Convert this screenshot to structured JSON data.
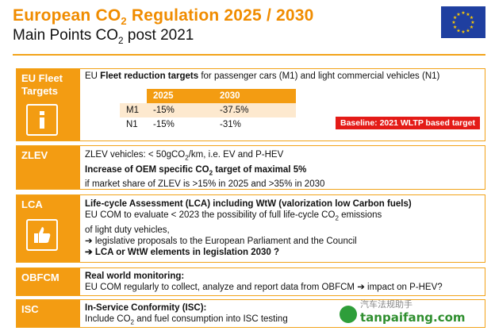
{
  "header": {
    "title_prefix": "European CO",
    "title_sub": "2",
    "title_suffix": " Regulation 2025 / 2030",
    "subtitle_prefix": "Main Points CO",
    "subtitle_sub": "2",
    "subtitle_suffix": " post 2021",
    "flag_icon": "eu-flag-icon",
    "colors": {
      "accent": "#f39c12",
      "title": "#f08c00",
      "flag_blue": "#1f3fa0",
      "flag_star": "#ffcc00",
      "alert": "#e41b17"
    }
  },
  "sections": {
    "fleet": {
      "label_line1": "EU Fleet",
      "label_line2": "Targets",
      "icon": "info-icon",
      "line1_pre": "EU ",
      "line1_bold": "Fleet reduction targets",
      "line1_post": " for passenger cars (M1) and light commercial vehicles (N1)",
      "table": {
        "headers": [
          "",
          "2025",
          "2030"
        ],
        "rows": [
          [
            "M1",
            "-15%",
            "-37.5%"
          ],
          [
            "N1",
            "-15%",
            "-31%"
          ]
        ]
      },
      "baseline": "Baseline: 2021 WLTP based target"
    },
    "zlev": {
      "label": "ZLEV",
      "line1_pre": "ZLEV vehicles: < 50gCO",
      "line1_sub": "2",
      "line1_post": "/km, i.e. EV and P-HEV",
      "line2_pre": "Increase of OEM specific CO",
      "line2_sub": "2",
      "line2_post": "  target of maximal 5%",
      "line3": "if market share of ZLEV is >15% in 2025 and >35% in 2030"
    },
    "lca": {
      "label": "LCA",
      "icon": "thumbs-up-icon",
      "line1": "Life-cycle Assessment (LCA) including WtW (valorization low Carbon fuels)",
      "line2_pre": "EU COM to evaluate  < 2023 the possibility of full life-cycle CO",
      "line2_sub": "2",
      "line2_post": " emissions",
      "line3": "of light duty vehicles,",
      "line4": "➔ legislative proposals to the European Parliament and the Council",
      "line5": "➔ LCA or WtW elements in legislation 2030 ?"
    },
    "obfcm": {
      "label": "OBFCM",
      "line1": "Real world monitoring:",
      "line2": "EU COM regularly to collect, analyze and report data from OBFCM ➔ impact on P-HEV?"
    },
    "isc": {
      "label": "ISC",
      "line1": "In-Service Conformity (ISC):",
      "line2_pre": "Include CO",
      "line2_sub": "2",
      "line2_post": " and fuel consumption into ISC testing"
    }
  },
  "watermark": {
    "line1": "汽车法规助手",
    "line2": "tanpaifang.com"
  }
}
